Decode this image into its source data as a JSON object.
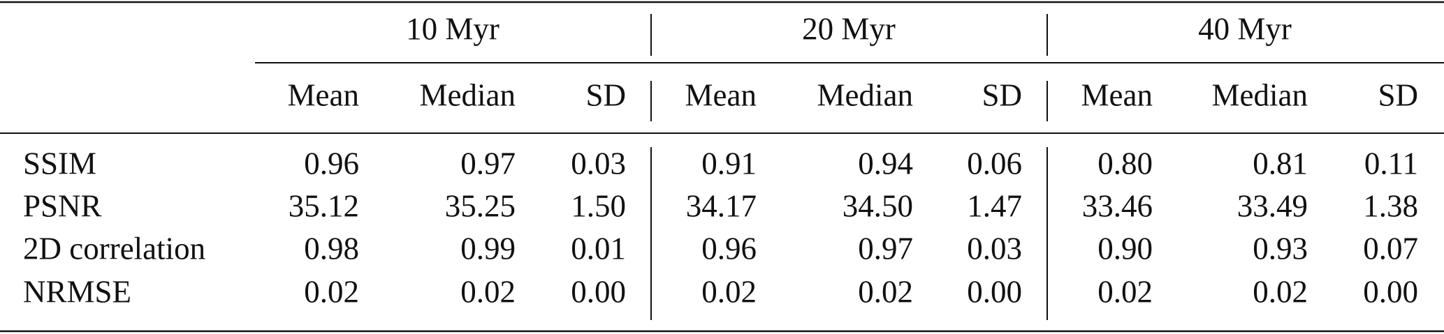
{
  "table": {
    "groups": [
      "10 Myr",
      "20 Myr",
      "40 Myr"
    ],
    "columns": [
      "Mean",
      "Median",
      "SD",
      "Mean",
      "Median",
      "SD",
      "Mean",
      "Median",
      "SD"
    ],
    "rows": [
      {
        "label": "SSIM",
        "cells": [
          "0.96",
          "0.97",
          "0.03",
          "0.91",
          "0.94",
          "0.06",
          "0.80",
          "0.81",
          "0.11"
        ]
      },
      {
        "label": "PSNR",
        "cells": [
          "35.12",
          "35.25",
          "1.50",
          "34.17",
          "34.50",
          "1.47",
          "33.46",
          "33.49",
          "1.38"
        ]
      },
      {
        "label": "2D correlation",
        "cells": [
          "0.98",
          "0.99",
          "0.01",
          "0.96",
          "0.97",
          "0.03",
          "0.90",
          "0.93",
          "0.07"
        ]
      },
      {
        "label": "NRMSE",
        "cells": [
          "0.02",
          "0.02",
          "0.00",
          "0.02",
          "0.02",
          "0.00",
          "0.02",
          "0.02",
          "0.00"
        ]
      }
    ]
  }
}
